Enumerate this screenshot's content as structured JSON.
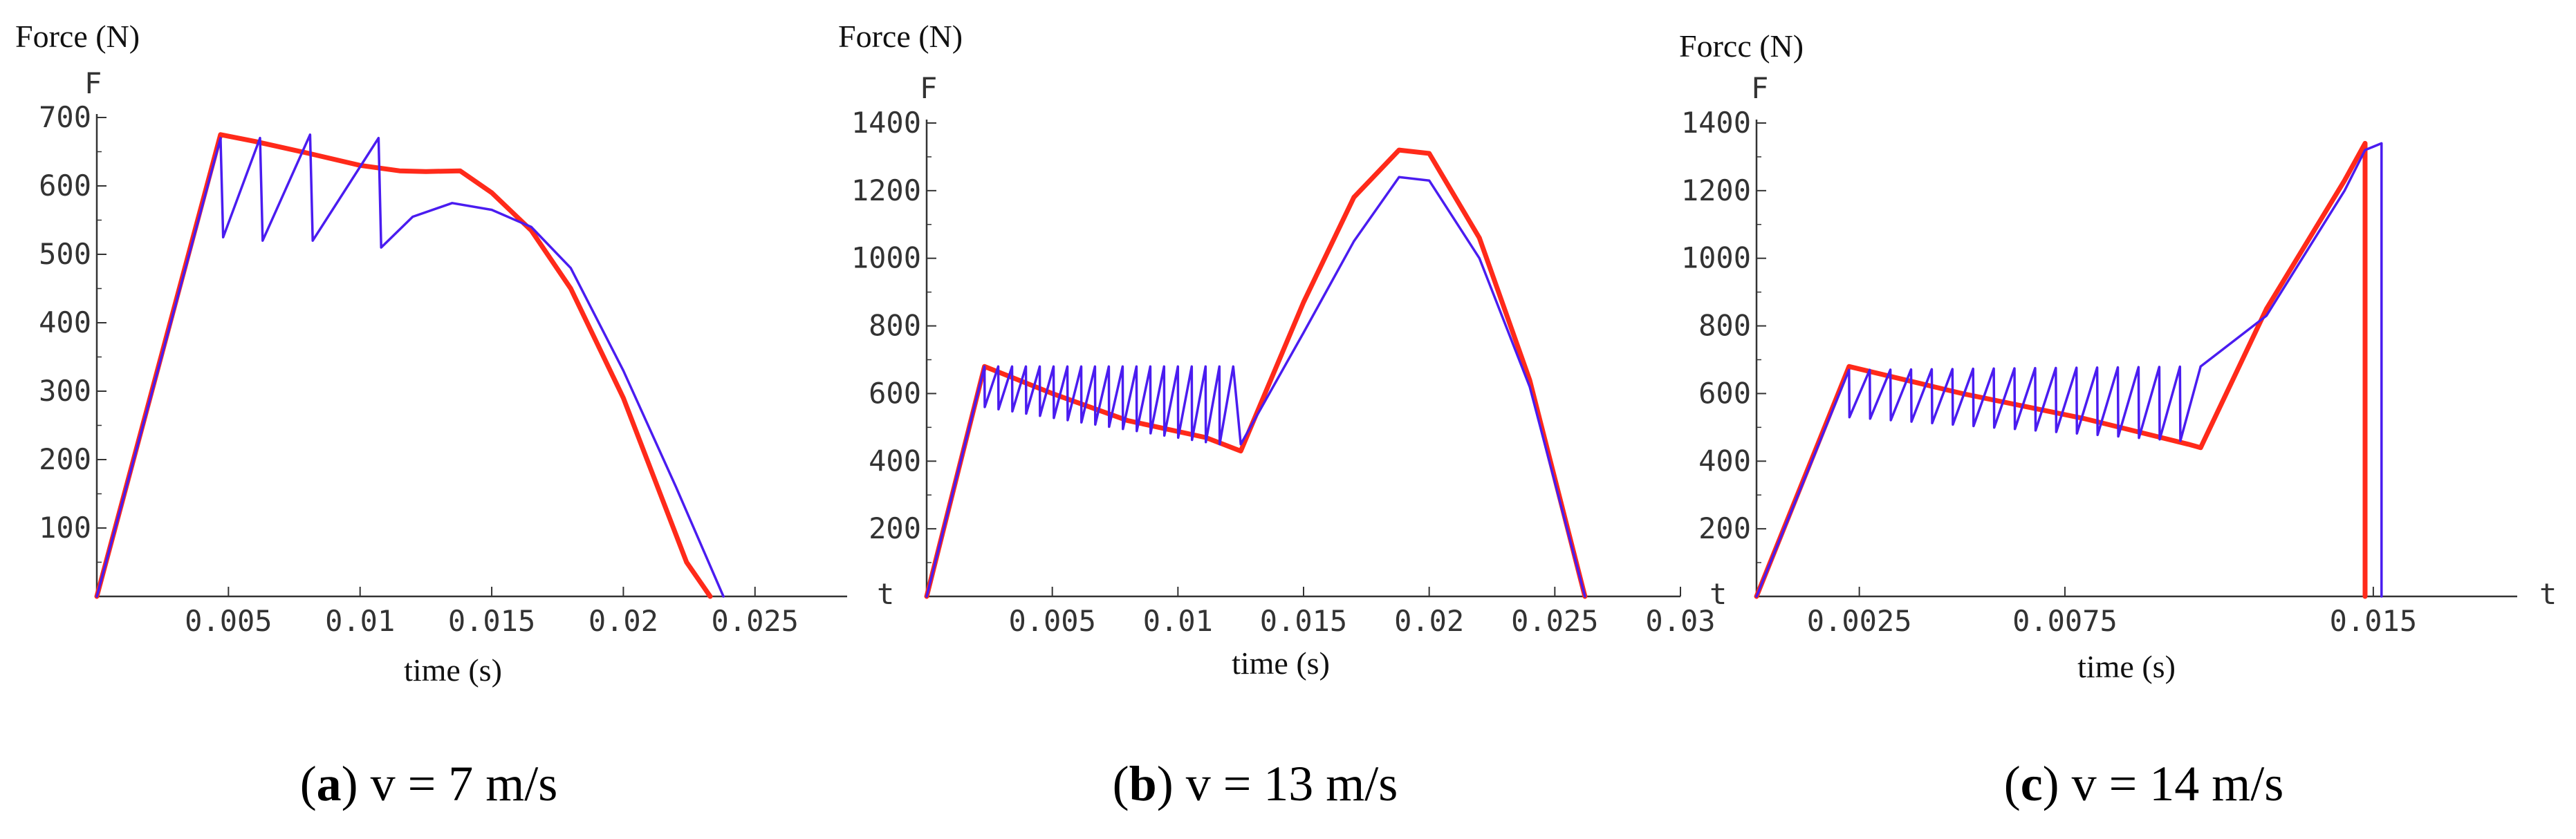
{
  "colors": {
    "series_a": "#ff2a1a",
    "series_b": "#4a1cf0",
    "axis": "#333333"
  },
  "chart_data": [
    {
      "type": "line",
      "panel": "a",
      "ylabel": "Force (N)",
      "y_letter": "F",
      "x_letter": "",
      "xlabel": "time (s)",
      "caption_letter": "a",
      "caption_rest": " v = 7 m/s",
      "xlim": [
        0,
        0.0285
      ],
      "ylim": [
        0,
        700
      ],
      "xticks": [
        0.005,
        0.01,
        0.015,
        0.02,
        0.025
      ],
      "xtick_labels": [
        "0.005",
        "0.01",
        "0.015",
        "0.02",
        "0.025"
      ],
      "yticks": [
        100,
        200,
        300,
        400,
        500,
        600,
        700
      ],
      "ytick_labels": [
        "100",
        "200",
        "300",
        "400",
        "500",
        "600",
        "700"
      ],
      "series": [
        {
          "name": "thick",
          "color_key": "series_a",
          "width": 7,
          "x": [
            0,
            0.0047,
            0.006,
            0.008,
            0.01,
            0.0115,
            0.0125,
            0.0138,
            0.015,
            0.0165,
            0.018,
            0.02,
            0.0224,
            0.0233
          ],
          "y": [
            0,
            675,
            665,
            648,
            630,
            622,
            621,
            622,
            590,
            535,
            450,
            290,
            50,
            0
          ]
        },
        {
          "name": "thin",
          "color_key": "series_b",
          "width": 3.5,
          "x": [
            0,
            0.0047,
            0.0048,
            0.0062,
            0.0063,
            0.0081,
            0.0082,
            0.0107,
            0.0108,
            0.012,
            0.0135,
            0.015,
            0.0165,
            0.018,
            0.02,
            0.022,
            0.0238
          ],
          "y": [
            0,
            670,
            525,
            670,
            520,
            675,
            520,
            670,
            510,
            555,
            575,
            565,
            540,
            480,
            330,
            160,
            0
          ]
        }
      ]
    },
    {
      "type": "line",
      "panel": "b",
      "ylabel": "Force (N)",
      "y_letter": "F",
      "x_letter": "t",
      "xlabel": "time (s)",
      "caption_letter": "b",
      "caption_rest": " v = 13 m/s",
      "xlim": [
        0,
        0.03
      ],
      "ylim": [
        0,
        1400
      ],
      "xticks": [
        0.005,
        0.01,
        0.015,
        0.02,
        0.025,
        0.03
      ],
      "xtick_labels": [
        "0.005",
        "0.01",
        "0.015",
        "0.02",
        "0.025",
        "0.03"
      ],
      "yticks": [
        200,
        400,
        600,
        800,
        1000,
        1200,
        1400
      ],
      "ytick_labels": [
        "200",
        "400",
        "600",
        "800",
        "1000",
        "1200",
        "1400"
      ],
      "series": [
        {
          "name": "thick",
          "color_key": "series_a",
          "width": 7,
          "x": [
            0,
            0.0023,
            0.005,
            0.008,
            0.0111,
            0.0125,
            0.015,
            0.017,
            0.0188,
            0.02,
            0.022,
            0.024,
            0.0262
          ],
          "y": [
            0,
            680,
            600,
            520,
            470,
            430,
            870,
            1180,
            1320,
            1310,
            1060,
            640,
            0
          ]
        },
        {
          "name": "thin",
          "color_key": "series_b",
          "width": 3.5,
          "sawtooth": {
            "x0": 0.0023,
            "x1": 0.0122,
            "n": 18,
            "top0": 680,
            "top1": 680,
            "bot0": 560,
            "bot1": 450
          },
          "x_tail": [
            0.0122,
            0.0125,
            0.015,
            0.017,
            0.0188,
            0.02,
            0.022,
            0.024,
            0.0262
          ],
          "y_tail": [
            680,
            450,
            780,
            1050,
            1240,
            1230,
            1000,
            620,
            0
          ]
        }
      ]
    },
    {
      "type": "line",
      "panel": "c",
      "ylabel": "Forcc (N)",
      "y_letter": "F",
      "x_letter": "t",
      "xlabel": "time (s)",
      "caption_letter": "c",
      "caption_rest": " v = 14 m/s",
      "xlim": [
        0,
        0.0185
      ],
      "ylim": [
        0,
        1400
      ],
      "xticks": [
        0.0025,
        0.0075,
        0.015
      ],
      "xtick_labels": [
        "0.0025",
        "0.0075",
        "0.015"
      ],
      "yticks": [
        200,
        400,
        600,
        800,
        1000,
        1200,
        1400
      ],
      "ytick_labels": [
        "200",
        "400",
        "600",
        "800",
        "1000",
        "1200",
        "1400"
      ],
      "series": [
        {
          "name": "thick",
          "color_key": "series_a",
          "width": 7,
          "x": [
            0,
            0.00225,
            0.005,
            0.008,
            0.0105,
            0.0108,
            0.0124,
            0.0143,
            0.0148,
            0.0148
          ],
          "y": [
            0,
            680,
            600,
            525,
            450,
            440,
            850,
            1230,
            1340,
            0
          ]
        },
        {
          "name": "thin",
          "color_key": "series_b",
          "width": 3.5,
          "sawtooth": {
            "x0": 0.00225,
            "x1": 0.0108,
            "n": 17,
            "top0": 670,
            "top1": 680,
            "bot0": 530,
            "bot1": 460
          },
          "x_tail": [
            0.0108,
            0.0124,
            0.0143,
            0.0148,
            0.0152,
            0.0152
          ],
          "y_tail": [
            680,
            830,
            1200,
            1320,
            1340,
            0
          ]
        }
      ]
    }
  ]
}
